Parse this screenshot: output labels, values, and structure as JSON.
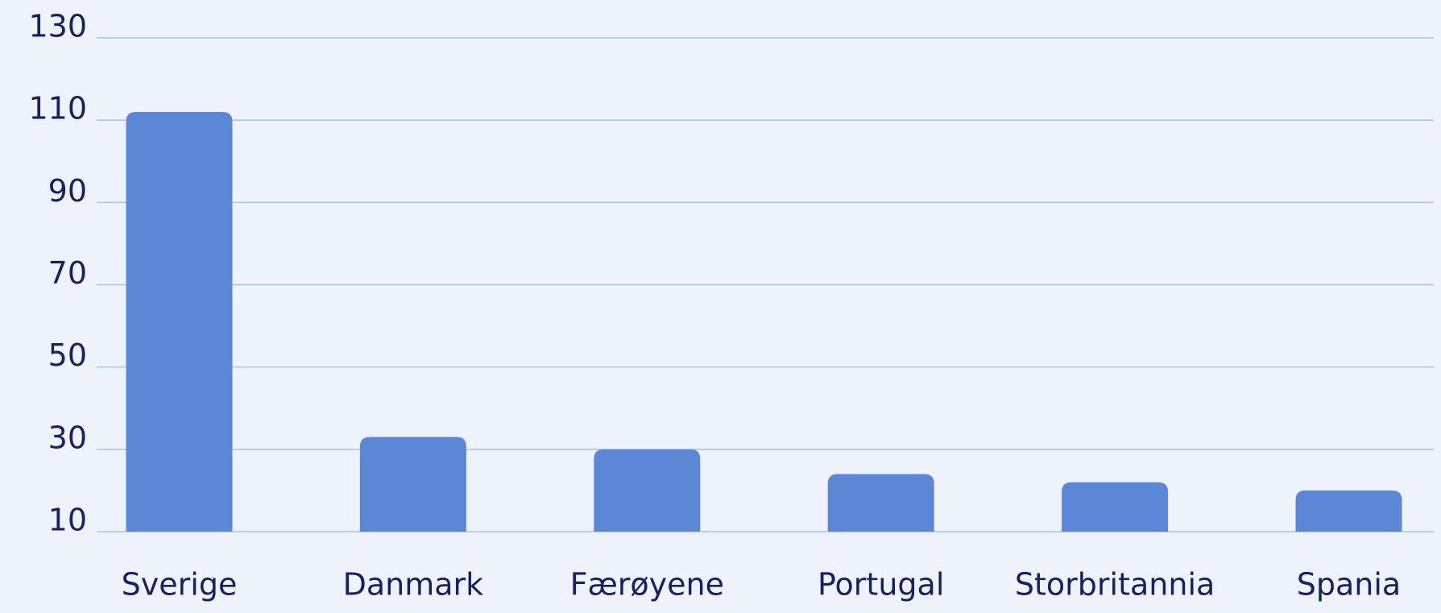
{
  "chart_data": {
    "type": "bar",
    "categories": [
      "Sverige",
      "Danmark",
      "Færøyene",
      "Portugal",
      "Storbritannia",
      "Spania"
    ],
    "values": [
      112,
      33,
      30,
      24,
      22,
      20
    ],
    "color": "#5b87d6",
    "ylim": [
      10,
      130
    ],
    "yticks": [
      10,
      30,
      50,
      70,
      90,
      110,
      130
    ],
    "grid": true
  }
}
